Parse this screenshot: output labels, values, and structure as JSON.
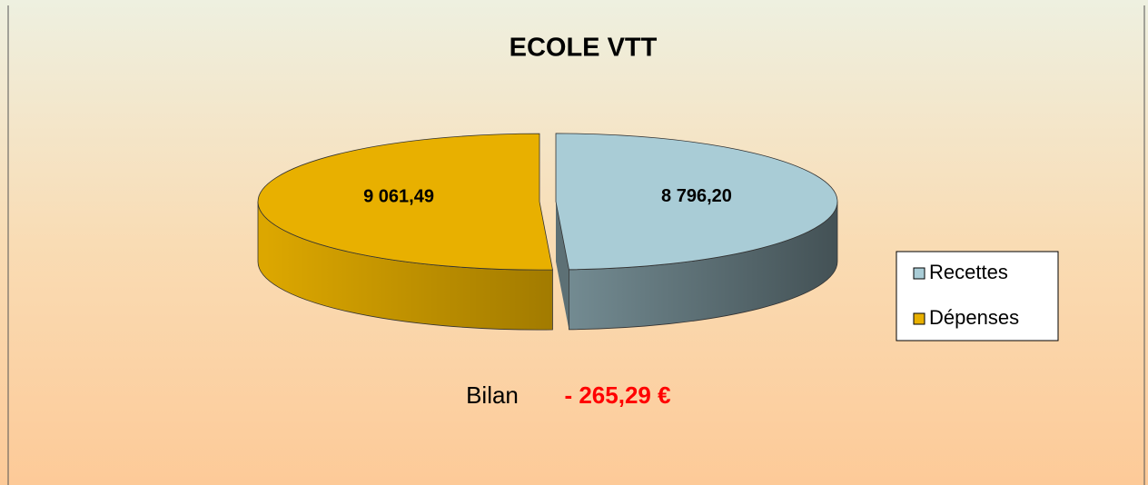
{
  "chart_data": {
    "type": "pie",
    "title": "ECOLE VTT",
    "categories": [
      "Recettes",
      "Dépenses"
    ],
    "values": [
      8796.2,
      9061.49
    ],
    "value_labels": [
      "8 796,20",
      "9 061,49"
    ],
    "colors": [
      "#a9ccd6",
      "#e8b000"
    ],
    "legend": "right",
    "annotations": [
      "Bilan",
      "- 265,29 €"
    ]
  }
}
